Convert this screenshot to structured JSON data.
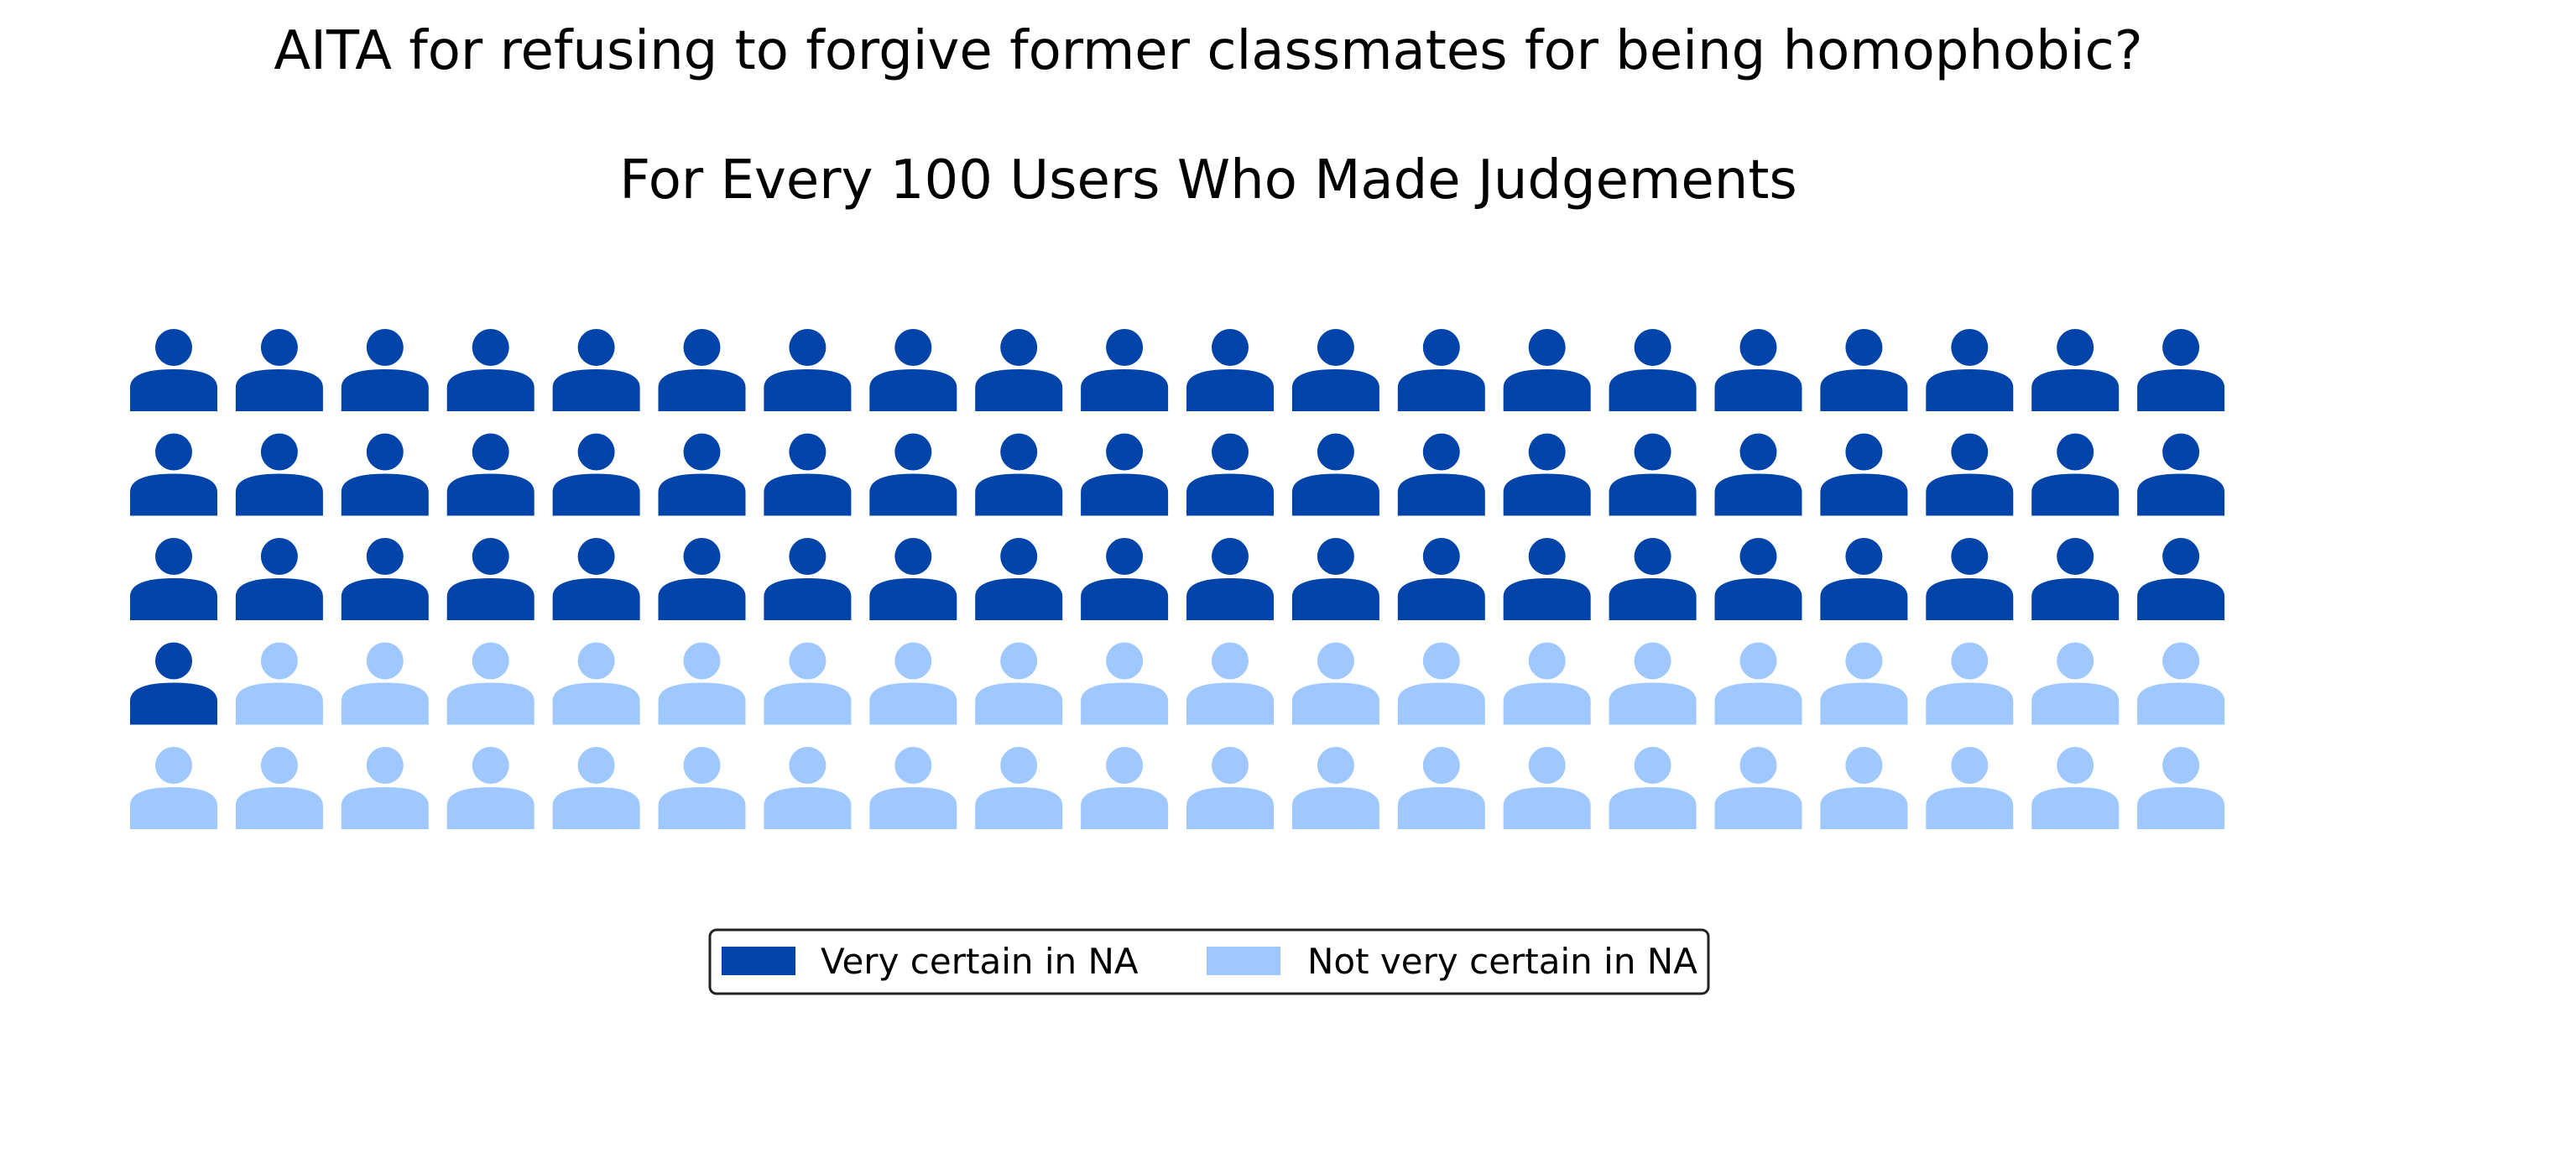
{
  "chart_data": {
    "type": "pictogram",
    "title": "AITA for refusing to forgive former classmates for being homophobic?",
    "subtitle": "For Every 100 Users Who Made Judgements",
    "icon": "person-icon",
    "total": 100,
    "grid": false,
    "legend_position": "bottom-center",
    "categories": [
      {
        "name": "Very certain in NA",
        "value": 61,
        "color": "#0044aa"
      },
      {
        "name": "Not very certain in NA",
        "value": 39,
        "color": "#9ec8ff"
      }
    ]
  }
}
